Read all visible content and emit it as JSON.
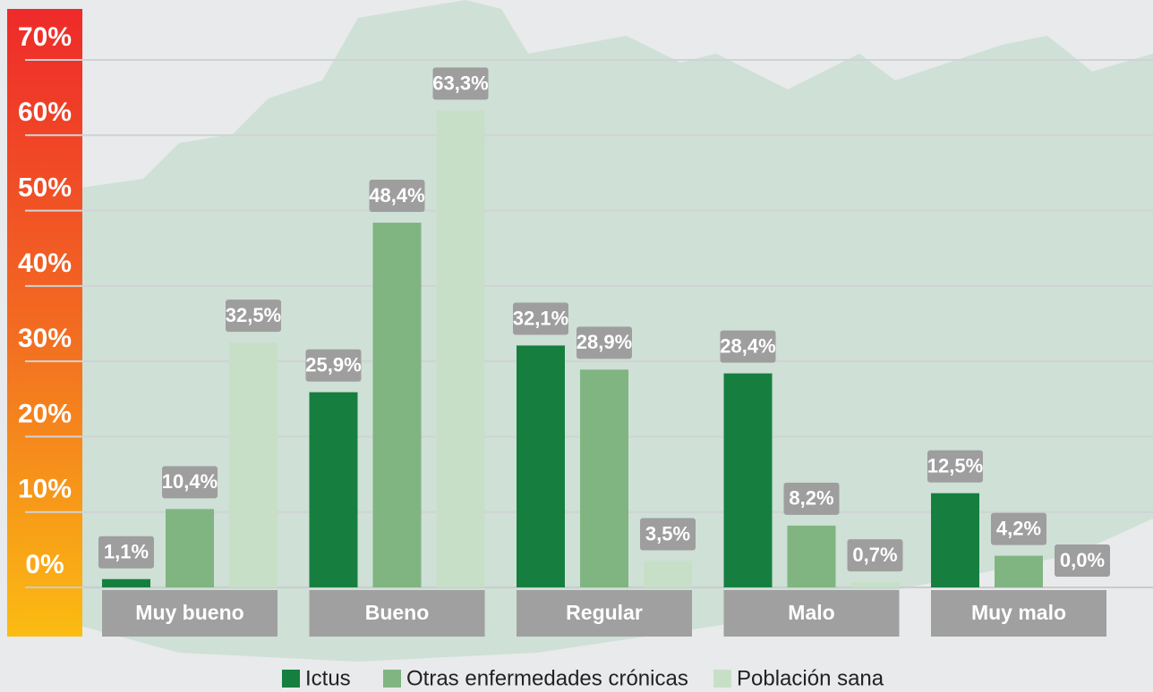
{
  "chart_data": {
    "type": "bar",
    "categories": [
      "Muy bueno",
      "Bueno",
      "Regular",
      "Malo",
      "Muy malo"
    ],
    "series": [
      {
        "name": "Ictus",
        "color": "#167f40",
        "values": [
          1.1,
          25.9,
          32.1,
          28.4,
          12.5
        ],
        "value_labels": [
          "1,1%",
          "25,9%",
          "32,1%",
          "28,4%",
          "12,5%"
        ]
      },
      {
        "name": "Otras enfermedades crónicas",
        "color": "#80b582",
        "values": [
          10.4,
          48.4,
          28.9,
          8.2,
          4.2
        ],
        "value_labels": [
          "10,4%",
          "48,4%",
          "28,9%",
          "8,2%",
          "4,2%"
        ]
      },
      {
        "name": "Población sana",
        "color": "#c8dfc7",
        "values": [
          32.5,
          63.3,
          3.5,
          0.7,
          0.0
        ],
        "value_labels": [
          "32,5%",
          "63,3%",
          "3,5%",
          "0,7%",
          "0,0%"
        ]
      }
    ],
    "ylim": [
      0,
      70
    ],
    "yticks": [
      {
        "value": 0,
        "label": "0%"
      },
      {
        "value": 10,
        "label": "10%"
      },
      {
        "value": 20,
        "label": "20%"
      },
      {
        "value": 30,
        "label": "30%"
      },
      {
        "value": 40,
        "label": "40%"
      },
      {
        "value": 50,
        "label": "50%"
      },
      {
        "value": 60,
        "label": "60%"
      },
      {
        "value": 70,
        "label": "70%"
      }
    ],
    "grid": true,
    "legend": "bottom"
  }
}
